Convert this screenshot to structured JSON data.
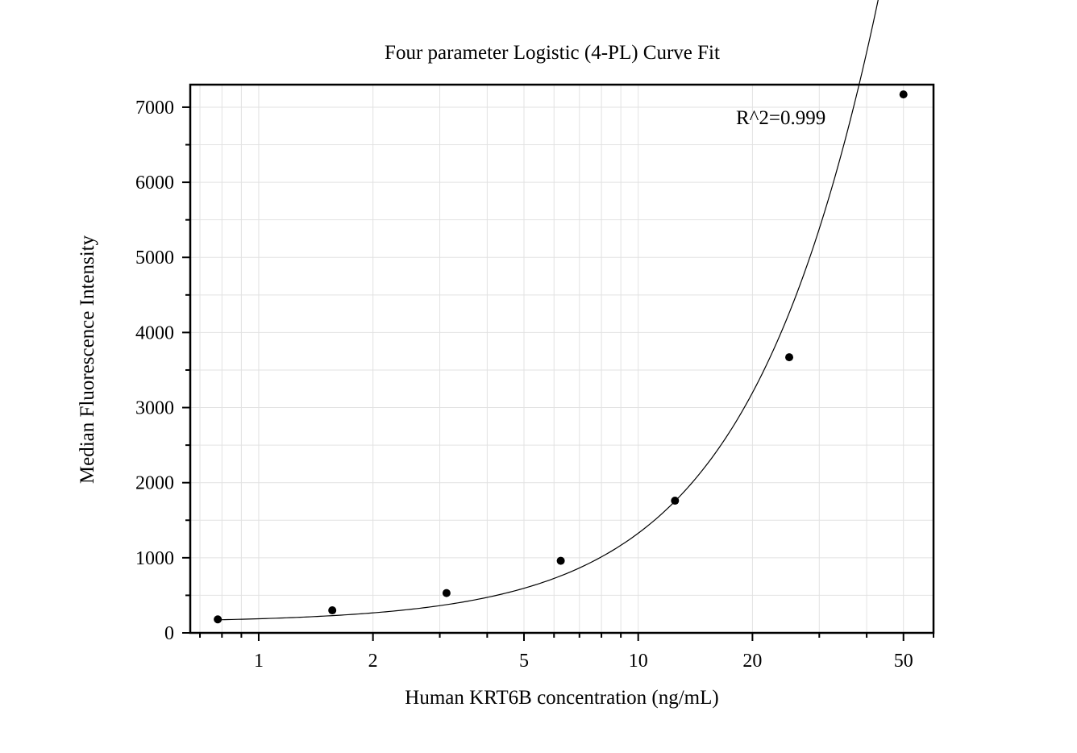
{
  "chart_data": {
    "type": "scatter",
    "title": "Four parameter Logistic (4-PL) Curve Fit",
    "xlabel": "Human KRT6B concentration (ng/mL)",
    "ylabel": "Median Fluorescence Intensity",
    "x_scale": "log",
    "xlim": [
      0.66,
      60
    ],
    "ylim": [
      0,
      7300
    ],
    "grid": true,
    "x_ticks": [
      1,
      2,
      5,
      10,
      20,
      50
    ],
    "x_tick_labels": [
      "1",
      "2",
      "5",
      "10",
      "20",
      "50"
    ],
    "y_ticks": [
      0,
      1000,
      2000,
      3000,
      4000,
      5000,
      6000,
      7000
    ],
    "y_tick_labels": [
      "0",
      "1000",
      "2000",
      "3000",
      "4000",
      "5000",
      "6000",
      "7000"
    ],
    "annotation": "R^2=0.999",
    "series": [
      {
        "kind": "points",
        "x": [
          0.78,
          1.5625,
          3.125,
          6.25,
          12.5,
          25,
          50
        ],
        "y": [
          180,
          300,
          530,
          960,
          1760,
          3670,
          7170
        ]
      },
      {
        "kind": "fit-curve",
        "model": "4PL",
        "params": {
          "A": 140,
          "B": 1.4,
          "C": 200,
          "D": 80000
        },
        "x_range": [
          0.78,
          50
        ]
      }
    ],
    "colors": {
      "points": "#000000",
      "curve": "#000000",
      "grid": "#e2e2e2",
      "axes": "#000000"
    }
  }
}
